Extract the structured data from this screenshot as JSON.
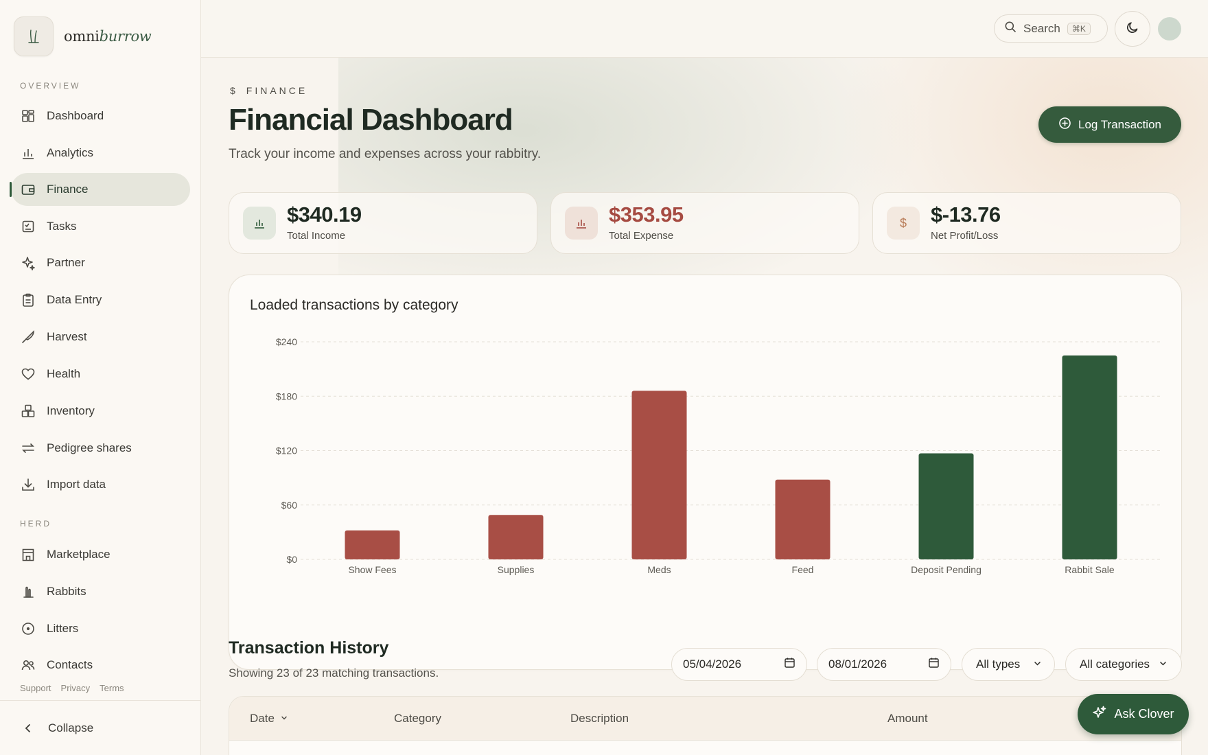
{
  "brand": {
    "name_part1": "omni",
    "name_part2": "burrow",
    "logo_icon": "rabbit-ears-icon"
  },
  "sidebar": {
    "overview_label": "OVERVIEW",
    "overview_items": [
      {
        "label": "Dashboard",
        "icon": "grid-icon"
      },
      {
        "label": "Analytics",
        "icon": "bar-chart-icon"
      },
      {
        "label": "Finance",
        "icon": "wallet-icon",
        "active": true
      },
      {
        "label": "Tasks",
        "icon": "checklist-icon"
      },
      {
        "label": "Partner",
        "icon": "sparkle-icon"
      },
      {
        "label": "Data Entry",
        "icon": "clipboard-icon"
      },
      {
        "label": "Harvest",
        "icon": "knife-icon"
      },
      {
        "label": "Health",
        "icon": "heart-icon"
      },
      {
        "label": "Inventory",
        "icon": "boxes-icon"
      },
      {
        "label": "Pedigree shares",
        "icon": "arrows-swap-icon"
      },
      {
        "label": "Import data",
        "icon": "download-icon"
      }
    ],
    "herd_label": "HERD",
    "herd_items": [
      {
        "label": "Marketplace",
        "icon": "store-icon"
      },
      {
        "label": "Rabbits",
        "icon": "rabbit-icon"
      },
      {
        "label": "Litters",
        "icon": "egg-icon"
      },
      {
        "label": "Contacts",
        "icon": "users-icon"
      }
    ],
    "footer_links": [
      "Support",
      "Privacy",
      "Terms"
    ],
    "collapse_label": "Collapse"
  },
  "topbar": {
    "search_label": "Search",
    "search_shortcut": "⌘K"
  },
  "header": {
    "eyebrow_symbol": "$",
    "eyebrow": "FINANCE",
    "title": "Financial Dashboard",
    "subtitle": "Track your income and expenses across your rabbitry.",
    "primary_action": "Log Transaction"
  },
  "stats": [
    {
      "value": "$340.19",
      "label": "Total Income",
      "color": "#1f2a22"
    },
    {
      "value": "$353.95",
      "label": "Total Expense",
      "color": "#a64b42"
    },
    {
      "value": "$-13.76",
      "label": "Net Profit/Loss",
      "color": "#1f2a22"
    }
  ],
  "chart_card": {
    "title": "Loaded transactions by category"
  },
  "chart_data": {
    "type": "bar",
    "title": "Loaded transactions by category",
    "categories": [
      "Show Fees",
      "Supplies",
      "Meds",
      "Feed",
      "Deposit Pending",
      "Rabbit Sale"
    ],
    "values": [
      32,
      49,
      186,
      88,
      117,
      225
    ],
    "kinds": [
      "expense",
      "expense",
      "expense",
      "expense",
      "income",
      "income"
    ],
    "colors": {
      "expense": "#a84e45",
      "income": "#2e5a3a"
    },
    "y_ticks": [
      "$0",
      "$60",
      "$120",
      "$180",
      "$240"
    ],
    "y_tick_values": [
      0,
      60,
      120,
      180,
      240
    ],
    "ylim": [
      0,
      240
    ],
    "grid": true
  },
  "history": {
    "title": "Transaction History",
    "subtitle": "Showing 23 of 23 matching transactions.",
    "date_from": "05/04/2026",
    "date_to": "08/01/2026",
    "type_filter": "All types",
    "category_filter": "All categories",
    "columns": [
      "Date",
      "Category",
      "Description",
      "Amount"
    ]
  },
  "assistant": {
    "label": "Ask Clover"
  }
}
